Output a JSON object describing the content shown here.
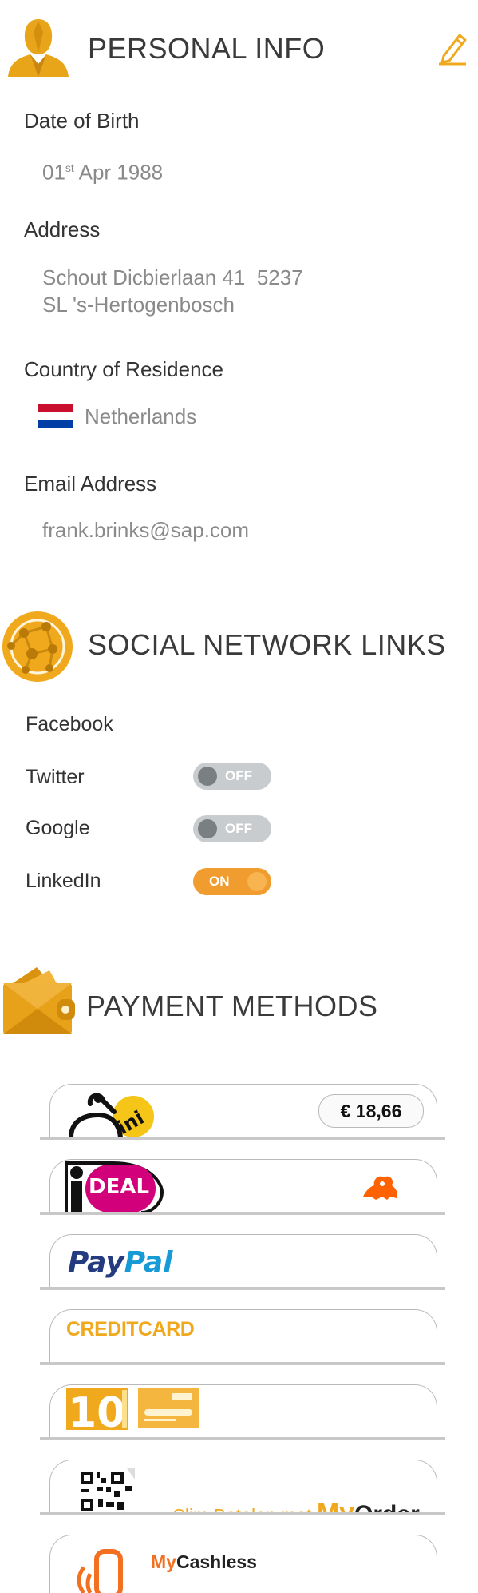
{
  "personal": {
    "title": "PERSONAL INFO",
    "dob_label": "Date of Birth",
    "dob_day": "01",
    "dob_suffix": "st",
    "dob_rest": " Apr 1988",
    "address_label": "Address",
    "address_line1": "Schout Dicbierlaan 41  5237",
    "address_line2": "SL 's-Hertogenbosch",
    "country_label": "Country of Residence",
    "country_value": "Netherlands",
    "email_label": "Email Address",
    "email_value": "frank.brinks@sap.com"
  },
  "social": {
    "title": "SOCIAL NETWORK LINKS",
    "items": [
      {
        "label": "Facebook"
      },
      {
        "label": "Twitter",
        "state": "OFF"
      },
      {
        "label": "Google",
        "state": "OFF"
      },
      {
        "label": "LinkedIn",
        "state": "ON"
      }
    ]
  },
  "payment": {
    "title": "PAYMENT METHODS",
    "balance": "€ 18,66",
    "paypal_pay": "Pay",
    "paypal_pal": "Pal",
    "creditcard": "CREDITCARD",
    "myorder_text": "Slim Betalen met ",
    "myorder_my": "My",
    "myorder_order": "Order",
    "mycashless_my": "My",
    "mycashless_rest": "Cashless"
  },
  "colors": {
    "accent": "#f0a81c",
    "toggle_on": "#f19c2e",
    "toggle_off": "#c9ccce"
  },
  "icons": [
    "person-icon",
    "pencil-icon",
    "globe-network-icon",
    "wallet-icon",
    "netherlands-flag-icon"
  ]
}
